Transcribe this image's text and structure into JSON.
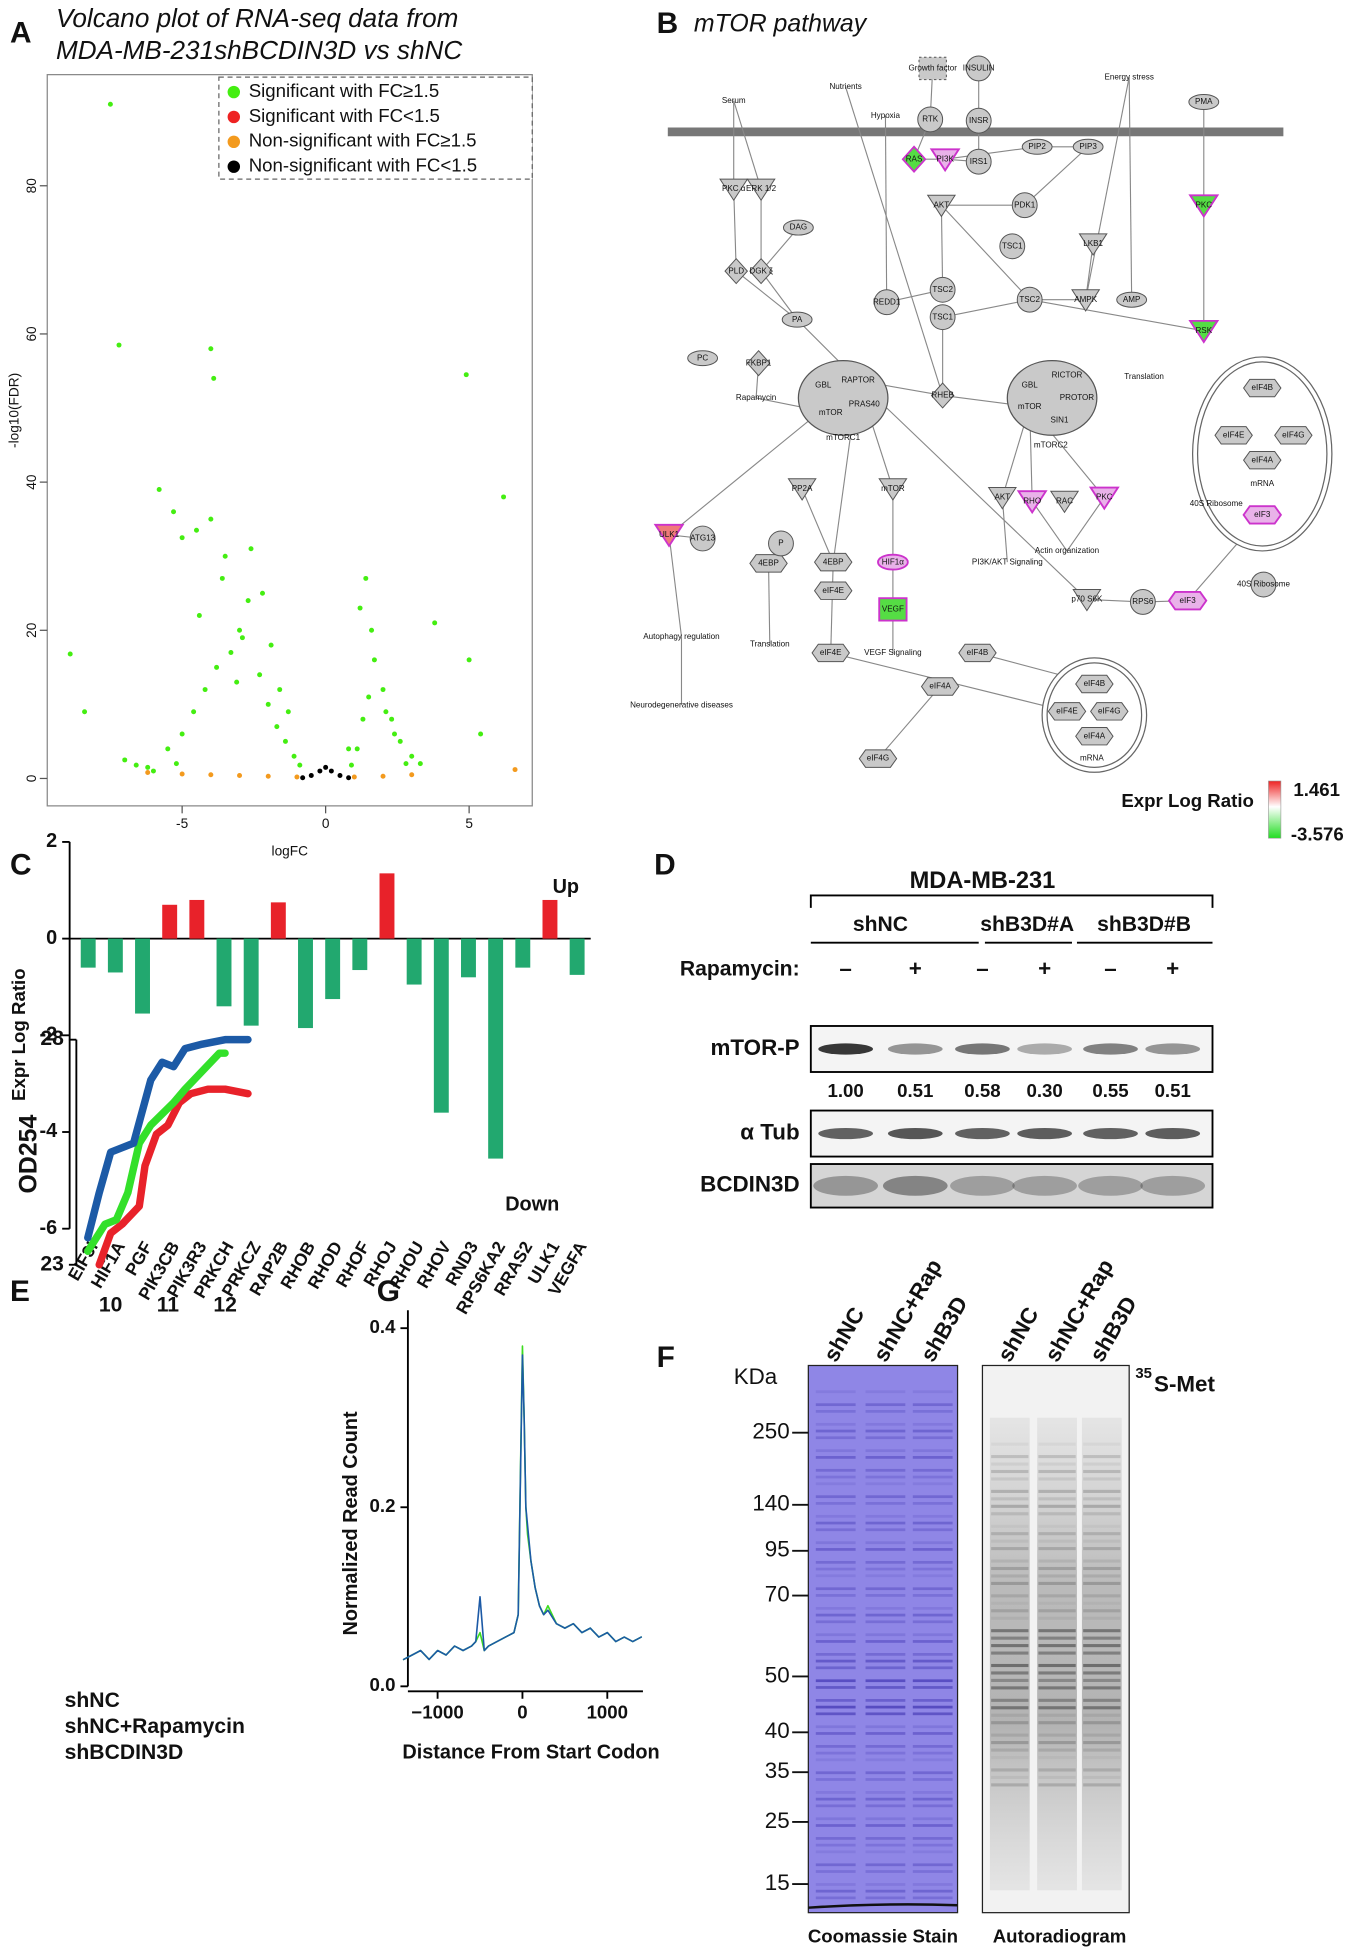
{
  "chart_data": [
    {
      "panel": "A",
      "type": "scatter",
      "title": [
        "Volcano plot of RNA-seq data from",
        "MDA-MB-231shBCDIN3D vs shNC"
      ],
      "xlabel": "logFC",
      "ylabel": "-log10(FDR)",
      "xlim": [
        -9.7,
        7.2
      ],
      "ylim": [
        -3.7,
        95
      ],
      "xticks": [
        -5,
        0,
        5
      ],
      "yticks": [
        0,
        20,
        40,
        60,
        80
      ],
      "legend": "upper right",
      "series": [
        {
          "name": "Significant with FC≥1.5",
          "color": "#44ee11",
          "x": [
            -7.5,
            -7.2,
            -4.0,
            -3.9,
            -5.8,
            -5.3,
            -4.5,
            -5.0,
            -4.0,
            -2.6,
            -3.5,
            -8.9,
            -8.4,
            4.9,
            6.2,
            3.8,
            5.0,
            5.4,
            -7.0,
            -6.6,
            -6.2,
            -5.5,
            -5.0,
            -4.6,
            -4.2,
            -3.8,
            -3.3,
            -3.0,
            -2.7,
            -2.3,
            -2.0,
            -1.7,
            -1.4,
            -1.1,
            -0.9,
            0.9,
            1.1,
            1.3,
            1.5,
            1.7,
            2.0,
            2.3,
            2.6,
            3.0,
            3.3,
            -4.4,
            -3.6,
            -2.9,
            -2.2,
            -1.6,
            1.2,
            1.6,
            2.1,
            -6.0,
            -5.2,
            -3.1,
            -1.9,
            -1.3,
            0.8,
            1.4,
            2.4,
            2.8
          ],
          "values": [
            91,
            58.5,
            58,
            54,
            39,
            36,
            33.5,
            32.5,
            35,
            31,
            30,
            16.8,
            9,
            54.5,
            38,
            21,
            16,
            6,
            2.5,
            1.8,
            1.5,
            4,
            6,
            9,
            12,
            15,
            17,
            20,
            24,
            14,
            10,
            7,
            5,
            3,
            1.8,
            1.8,
            4,
            8,
            11,
            16,
            12,
            8,
            5,
            3,
            2,
            22,
            27,
            19,
            25,
            12,
            23,
            20,
            9,
            1,
            2,
            13,
            18,
            9,
            4,
            27,
            6,
            2
          ]
        },
        {
          "name": "Significant with FC<1.5",
          "color": "#ee2222",
          "x": [],
          "values": []
        },
        {
          "name": "Non-significant with FC≥1.5",
          "color": "#f39a1e",
          "x": [
            -6.2,
            -5,
            -4,
            -3,
            -2,
            -1,
            1,
            2,
            3,
            6.6
          ],
          "values": [
            0.8,
            0.6,
            0.5,
            0.4,
            0.3,
            0.2,
            0.2,
            0.3,
            0.5,
            1.2
          ]
        },
        {
          "name": "Non-significant with FC<1.5",
          "color": "#000000",
          "x": [
            -0.8,
            -0.5,
            -0.2,
            0,
            0.2,
            0.5,
            0.8
          ],
          "values": [
            0.1,
            0.4,
            1,
            1.5,
            1,
            0.4,
            0.1
          ]
        }
      ]
    },
    {
      "panel": "C",
      "type": "bar",
      "ylabel": "Expr Log Ratio",
      "categories": [
        "EIF3I",
        "HIF1A",
        "PGF",
        "PIK3CB",
        "PIK3R3",
        "PRKCH",
        "PRKCZ",
        "RAP2B",
        "RHOB",
        "RHOD",
        "RHOF",
        "RHOJ",
        "RHOU",
        "RHOV",
        "RND3",
        "RPS6KA2",
        "RRAS2",
        "ULK1",
        "VEGFA"
      ],
      "values": [
        -0.6,
        -0.7,
        -1.55,
        0.7,
        0.8,
        -1.4,
        -1.8,
        0.75,
        -1.85,
        -1.25,
        -0.65,
        1.35,
        -0.95,
        -3.6,
        -0.8,
        -4.55,
        -0.6,
        0.8,
        -0.75
      ],
      "colors": [
        "#22a86f",
        "#22a86f",
        "#22a86f",
        "#e8222a",
        "#e8222a",
        "#22a86f",
        "#22a86f",
        "#e8222a",
        "#22a86f",
        "#22a86f",
        "#22a86f",
        "#e8222a",
        "#22a86f",
        "#22a86f",
        "#22a86f",
        "#22a86f",
        "#22a86f",
        "#e8222a",
        "#22a86f"
      ],
      "annotations": [
        {
          "text": "Up",
          "color": "#e8222a"
        },
        {
          "text": "Down",
          "color": "#22a86f"
        }
      ],
      "ylim": [
        -6,
        2
      ],
      "yticks": [
        -6,
        -4,
        -2,
        0,
        2
      ]
    },
    {
      "panel": "E",
      "type": "line",
      "ylabel": "OD254",
      "xlim": [
        9.4,
        12.6
      ],
      "ylim": [
        23,
        28
      ],
      "xticks": [
        10,
        11,
        12
      ],
      "yticks": [
        23,
        28
      ],
      "series": [
        {
          "name": "shNC",
          "color": "#1c5aa6",
          "x": [
            9.6,
            9.8,
            10.0,
            10.2,
            10.4,
            10.7,
            10.9,
            11.1,
            11.3,
            11.6,
            12.0,
            12.4
          ],
          "values": [
            23.6,
            24.6,
            25.5,
            25.6,
            25.7,
            27.1,
            27.5,
            27.4,
            27.8,
            27.9,
            28.0,
            28.0
          ]
        },
        {
          "name": "shNC+Rapamycin",
          "color": "#33e02a",
          "x": [
            9.6,
            9.9,
            10.1,
            10.3,
            10.5,
            10.7,
            11.1,
            11.3,
            11.6,
            11.9,
            12.0
          ],
          "values": [
            23.3,
            23.9,
            24.0,
            24.6,
            25.7,
            26.1,
            26.6,
            26.9,
            27.3,
            27.7,
            27.7
          ]
        },
        {
          "name": "shBCDIN3D",
          "color": "#e8222a",
          "x": [
            9.8,
            10.0,
            10.2,
            10.5,
            10.6,
            10.8,
            11.0,
            11.2,
            11.4,
            11.7,
            12.0,
            12.4
          ],
          "values": [
            23.0,
            23.7,
            23.9,
            24.3,
            25.2,
            25.9,
            26.1,
            26.6,
            26.8,
            26.9,
            26.9,
            26.8
          ]
        }
      ]
    },
    {
      "panel": "G",
      "type": "line",
      "xlabel": "Distance From Start Codon",
      "ylabel": "Normalized Read Count",
      "xlim": [
        -1350,
        1420
      ],
      "ylim": [
        0,
        0.42
      ],
      "xticks": [
        {
          "value": -1000,
          "label": "−1000"
        },
        0,
        1000
      ],
      "yticks": [
        {
          "value": 0,
          "label": "0.0"
        },
        0.2,
        0.4
      ],
      "x": [
        -1400,
        -1300,
        -1200,
        -1100,
        -1000,
        -900,
        -800,
        -700,
        -600,
        -550,
        -500,
        -450,
        -400,
        -300,
        -200,
        -100,
        -50,
        0,
        20,
        40,
        60,
        100,
        150,
        200,
        250,
        300,
        400,
        500,
        600,
        700,
        800,
        900,
        1000,
        1100,
        1200,
        1300,
        1400
      ],
      "series": [
        {
          "color": "#1c5aa6",
          "values": [
            0.03,
            0.035,
            0.04,
            0.03,
            0.04,
            0.035,
            0.045,
            0.04,
            0.045,
            0.05,
            0.1,
            0.04,
            0.045,
            0.05,
            0.055,
            0.06,
            0.08,
            0.37,
            0.3,
            0.2,
            0.18,
            0.14,
            0.11,
            0.09,
            0.08,
            0.085,
            0.07,
            0.065,
            0.07,
            0.06,
            0.065,
            0.055,
            0.06,
            0.05,
            0.055,
            0.05,
            0.055
          ]
        },
        {
          "color": "#3ddc1f",
          "values": [
            0.03,
            0.035,
            0.04,
            0.03,
            0.04,
            0.035,
            0.045,
            0.04,
            0.045,
            0.05,
            0.06,
            0.04,
            0.045,
            0.05,
            0.055,
            0.06,
            0.08,
            0.38,
            0.3,
            0.2,
            0.17,
            0.14,
            0.11,
            0.09,
            0.08,
            0.09,
            0.07,
            0.065,
            0.07,
            0.06,
            0.065,
            0.055,
            0.06,
            0.05,
            0.055,
            0.05,
            0.055
          ]
        }
      ]
    }
  ],
  "pathway": {
    "panel": "B",
    "title": "mTOR pathway",
    "nodes": [
      "Serum",
      "Nutrients",
      "Growth factor",
      "INSULIN",
      "Energy stress",
      "PMA",
      "Hypoxia",
      "RTK",
      "INSR",
      "RAS",
      "PI3K",
      "IRS1",
      "PIP2",
      "PIP3",
      "PKC α",
      "ERK 1/2",
      "AKT",
      "PDK1",
      "PKC",
      "DAG",
      "TSC1",
      "LKB1",
      "PLD",
      "DGK ζ",
      "REDD1",
      "TSC2",
      "TSC1",
      "TSC2",
      "AMPK",
      "AMP",
      "PA",
      "RSK",
      "PC",
      "FKBP1",
      "Rapamycin",
      "GBL",
      "RAPTOR",
      "mTOR",
      "PRAS40",
      "mTORC1",
      "RHEB",
      "GBL",
      "RICTOR",
      "mTOR",
      "PROTOR",
      "SIN1",
      "mTORC2",
      "Translation",
      "eIF4B",
      "eIF4E",
      "eIF4G",
      "eIF4A",
      "mRNA",
      "40S Ribosome",
      "eIF3",
      "PP2A",
      "mTOR",
      "AKT",
      "RHO",
      "RAC",
      "PKC",
      "ULK1",
      "ATG13",
      "4EBP",
      "4EBP",
      "eIF4E",
      "HIF1α",
      "PI3K/AKT Signaling",
      "Actin organization",
      "VEGF",
      "p70 S6K",
      "RPS6",
      "eIF3",
      "40S Ribosome",
      "Autophagy regulation",
      "Translation",
      "VEGF Signaling",
      "eIF4E",
      "eIF4B",
      "Neurodegenerative diseases",
      "eIF4A",
      "eIF4B",
      "eIF4E",
      "eIF4G",
      "eIF4A",
      "mRNA",
      "eIF4G",
      "P"
    ],
    "legend": {
      "title": "Expr Log Ratio",
      "max": 1.461,
      "min": -3.576
    }
  },
  "western_blot": {
    "panel": "D",
    "cell_line": "MDA-MB-231",
    "groups": [
      "shNC",
      "shB3D#A",
      "shB3D#B"
    ],
    "treatment": "Rapamycin:",
    "treatment_marks": [
      "–",
      "+",
      "–",
      "+",
      "–",
      "+"
    ],
    "rows": [
      "mTOR-P",
      "α Tub",
      "BCDIN3D"
    ],
    "quantification": [
      "1.00",
      "0.51",
      "0.58",
      "0.30",
      "0.55",
      "0.51"
    ]
  },
  "gel": {
    "panel": "F",
    "unit": "KDa",
    "lanes": [
      "shNC",
      "shNC+Rap",
      "shB3D",
      "shNC",
      "shNC+Rap",
      "shB3D"
    ],
    "markers": [
      250,
      140,
      95,
      70,
      50,
      40,
      35,
      25,
      15
    ],
    "radiolabel": [
      "35",
      "S-Met"
    ],
    "panels": [
      "Coomassie Stain",
      "Autoradiogram"
    ]
  }
}
